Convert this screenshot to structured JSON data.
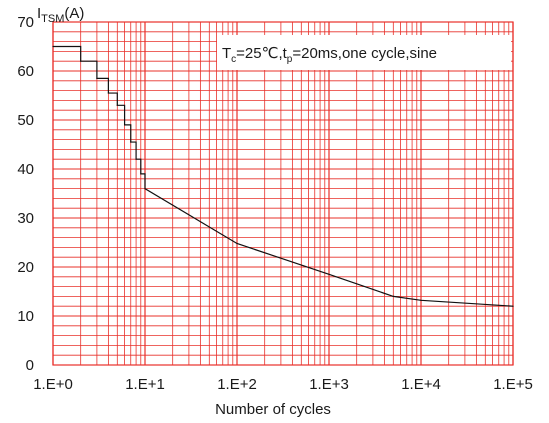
{
  "chart_data": {
    "type": "line",
    "xscale": "log",
    "xlim": [
      1,
      100000
    ],
    "ylim": [
      0,
      70
    ],
    "xlabel": "Number of cycles",
    "ylabel": {
      "main": "I",
      "sub": "TSM",
      "unit": "(A)"
    },
    "yticks": [
      "0",
      "10",
      "20",
      "30",
      "40",
      "50",
      "60",
      "70"
    ],
    "xticks": [
      "1.E+0",
      "1.E+1",
      "1.E+2",
      "1.E+3",
      "1.E+4",
      "1.E+5"
    ],
    "grid": true,
    "grid_color": "#e8302a",
    "line_color": "#111111",
    "annotation": {
      "T": "T",
      "T_sub": "c",
      "mid": "=25℃,t",
      "t_sub": "p",
      "rest": "=20ms,one cycle,sine"
    },
    "series": [
      {
        "x": [
          1,
          2,
          3,
          4,
          5,
          6,
          7,
          8,
          9,
          10,
          100,
          1000,
          5000,
          10000,
          100000
        ],
        "y": [
          65,
          62,
          58.5,
          55.5,
          53,
          49,
          45.5,
          42,
          39,
          36,
          24.8,
          18.5,
          14,
          13.2,
          12
        ]
      }
    ]
  }
}
